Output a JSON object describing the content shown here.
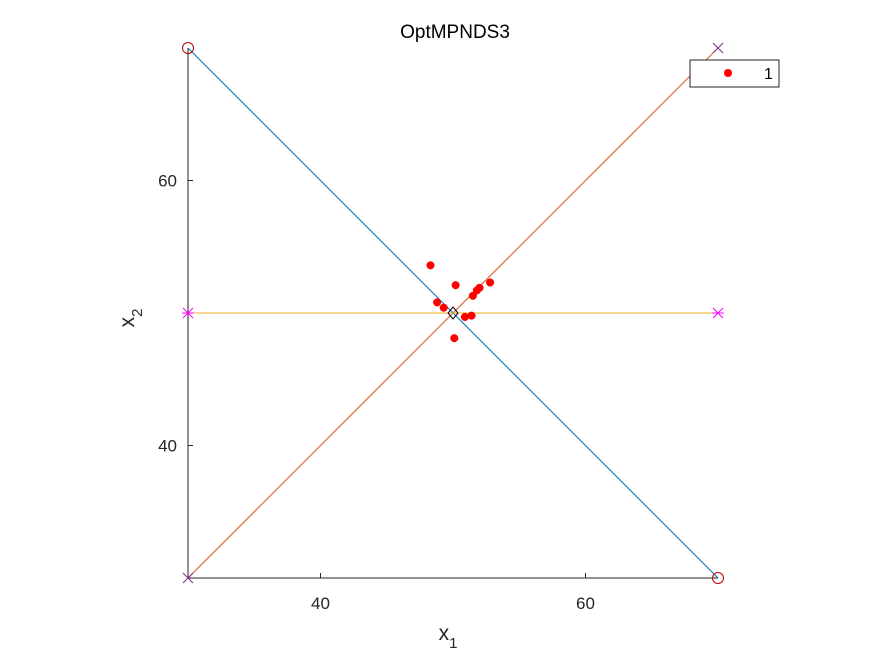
{
  "chart_data": {
    "type": "scatter",
    "title": "OptMPNDS3",
    "xlabel": "x",
    "xlabel_sub": "1",
    "ylabel": "x",
    "ylabel_sub": "2",
    "xlim": [
      30,
      70
    ],
    "ylim": [
      30,
      70
    ],
    "xticks": [
      40,
      60
    ],
    "yticks": [
      40,
      60
    ],
    "grid": false,
    "legend": {
      "position": "top-right",
      "entries": [
        "1"
      ]
    },
    "series": [
      {
        "name": "1",
        "marker": "filled-circle",
        "color": "#ff0000",
        "points": [
          [
            48.3,
            53.6
          ],
          [
            48.8,
            50.8
          ],
          [
            49.3,
            50.4
          ],
          [
            50.2,
            52.1
          ],
          [
            50.1,
            48.1
          ],
          [
            50.9,
            49.7
          ],
          [
            51.4,
            49.8
          ],
          [
            51.5,
            51.3
          ],
          [
            51.8,
            51.7
          ],
          [
            52.0,
            51.9
          ],
          [
            52.8,
            52.3
          ]
        ]
      }
    ],
    "lines": [
      {
        "from": [
          30,
          70
        ],
        "to": [
          70,
          30
        ],
        "color": "#0072bd"
      },
      {
        "from": [
          30,
          30
        ],
        "to": [
          70,
          70
        ],
        "color": "#d95319"
      },
      {
        "from": [
          30,
          50
        ],
        "to": [
          70,
          50
        ],
        "color": "#edb120"
      }
    ],
    "vertex_markers": [
      {
        "x": 30,
        "y": 70,
        "marker": "circle",
        "color": "#c00000"
      },
      {
        "x": 70,
        "y": 30,
        "marker": "circle",
        "color": "#c00000"
      },
      {
        "x": 30,
        "y": 30,
        "marker": "x",
        "color": "#7e2f8e"
      },
      {
        "x": 70,
        "y": 70,
        "marker": "x",
        "color": "#7e2f8e"
      },
      {
        "x": 30,
        "y": 50,
        "marker": "star",
        "color": "#ff00ff"
      },
      {
        "x": 70,
        "y": 50,
        "marker": "star",
        "color": "#ff00ff"
      }
    ],
    "center_marker": {
      "x": 50,
      "y": 50,
      "marker": "diamond",
      "color": "#000000"
    }
  }
}
